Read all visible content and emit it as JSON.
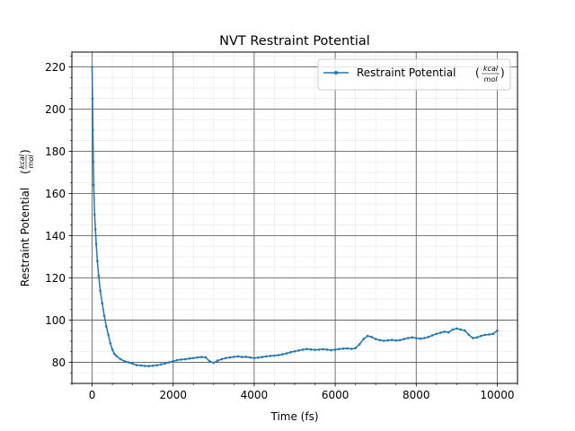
{
  "chart_data": {
    "type": "line",
    "title": "NVT  Restraint Potential",
    "xlabel": "Time (fs)",
    "ylabel": "Restraint Potential",
    "ylabel_unit_num": "kcal",
    "ylabel_unit_den": "mol",
    "xlim": [
      -500,
      10500
    ],
    "ylim": [
      70,
      227
    ],
    "x_ticks": [
      0,
      2000,
      4000,
      6000,
      8000,
      10000
    ],
    "x_tick_labels": [
      "0",
      "2000",
      "4000",
      "6000",
      "8000",
      "10000"
    ],
    "y_ticks": [
      80,
      100,
      120,
      140,
      160,
      180,
      200,
      220
    ],
    "y_tick_labels": [
      "80",
      "100",
      "120",
      "140",
      "160",
      "180",
      "200",
      "220"
    ],
    "x_minor_step": 500,
    "y_minor_step": 5,
    "grid": true,
    "legend_position": "top-right",
    "series": [
      {
        "name": "Restraint Potential",
        "name_unit_num": "kcal",
        "name_unit_den": "mol",
        "color": "#1f77b4",
        "points": [
          [
            0,
            220
          ],
          [
            10,
            205
          ],
          [
            20,
            190
          ],
          [
            30,
            175
          ],
          [
            40,
            164
          ],
          [
            60,
            150
          ],
          [
            80,
            143
          ],
          [
            100,
            136
          ],
          [
            130,
            128
          ],
          [
            160,
            121
          ],
          [
            200,
            114
          ],
          [
            250,
            108
          ],
          [
            300,
            102
          ],
          [
            350,
            97
          ],
          [
            400,
            93
          ],
          [
            450,
            89
          ],
          [
            500,
            86
          ],
          [
            550,
            84
          ],
          [
            600,
            83
          ],
          [
            700,
            81.5
          ],
          [
            800,
            80.5
          ],
          [
            900,
            80
          ],
          [
            1000,
            79.3
          ],
          [
            1100,
            78.7
          ],
          [
            1200,
            78.5
          ],
          [
            1300,
            78.3
          ],
          [
            1400,
            78.2
          ],
          [
            1500,
            78.4
          ],
          [
            1600,
            78.6
          ],
          [
            1700,
            79
          ],
          [
            1800,
            79.5
          ],
          [
            1900,
            80
          ],
          [
            2000,
            80.5
          ],
          [
            2100,
            81
          ],
          [
            2200,
            81.3
          ],
          [
            2300,
            81.5
          ],
          [
            2400,
            81.8
          ],
          [
            2500,
            82
          ],
          [
            2600,
            82.3
          ],
          [
            2700,
            82.5
          ],
          [
            2800,
            82.4
          ],
          [
            2900,
            80.5
          ],
          [
            3000,
            79.8
          ],
          [
            3100,
            80.8
          ],
          [
            3200,
            81.5
          ],
          [
            3300,
            82
          ],
          [
            3400,
            82.3
          ],
          [
            3500,
            82.6
          ],
          [
            3600,
            82.8
          ],
          [
            3700,
            82.5
          ],
          [
            3800,
            82.6
          ],
          [
            3900,
            82.3
          ],
          [
            4000,
            82
          ],
          [
            4100,
            82.2
          ],
          [
            4200,
            82.5
          ],
          [
            4300,
            82.8
          ],
          [
            4400,
            83
          ],
          [
            4500,
            83.2
          ],
          [
            4600,
            83.4
          ],
          [
            4700,
            83.8
          ],
          [
            4800,
            84.2
          ],
          [
            4900,
            84.8
          ],
          [
            5000,
            85.2
          ],
          [
            5100,
            85.6
          ],
          [
            5200,
            86
          ],
          [
            5300,
            86.3
          ],
          [
            5400,
            86.1
          ],
          [
            5500,
            85.9
          ],
          [
            5600,
            86
          ],
          [
            5700,
            86.2
          ],
          [
            5800,
            86
          ],
          [
            5900,
            85.8
          ],
          [
            6000,
            86
          ],
          [
            6100,
            86.3
          ],
          [
            6200,
            86.5
          ],
          [
            6300,
            86.6
          ],
          [
            6400,
            86.4
          ],
          [
            6500,
            86.7
          ],
          [
            6600,
            88.5
          ],
          [
            6700,
            91
          ],
          [
            6800,
            92.5
          ],
          [
            6900,
            92
          ],
          [
            7000,
            91
          ],
          [
            7100,
            90.5
          ],
          [
            7200,
            90.2
          ],
          [
            7300,
            90.4
          ],
          [
            7400,
            90.6
          ],
          [
            7500,
            90.3
          ],
          [
            7600,
            90.5
          ],
          [
            7700,
            91
          ],
          [
            7800,
            91.5
          ],
          [
            7900,
            91.8
          ],
          [
            8000,
            91.5
          ],
          [
            8100,
            91.2
          ],
          [
            8200,
            91.5
          ],
          [
            8300,
            92
          ],
          [
            8400,
            92.8
          ],
          [
            8500,
            93.5
          ],
          [
            8600,
            94
          ],
          [
            8700,
            94.5
          ],
          [
            8800,
            94.2
          ],
          [
            8900,
            95.5
          ],
          [
            9000,
            96
          ],
          [
            9100,
            95.5
          ],
          [
            9200,
            95
          ],
          [
            9300,
            93
          ],
          [
            9400,
            91.5
          ],
          [
            9500,
            91.8
          ],
          [
            9600,
            92.5
          ],
          [
            9700,
            93
          ],
          [
            9800,
            93.2
          ],
          [
            9900,
            93.5
          ],
          [
            10000,
            95
          ]
        ]
      }
    ]
  }
}
